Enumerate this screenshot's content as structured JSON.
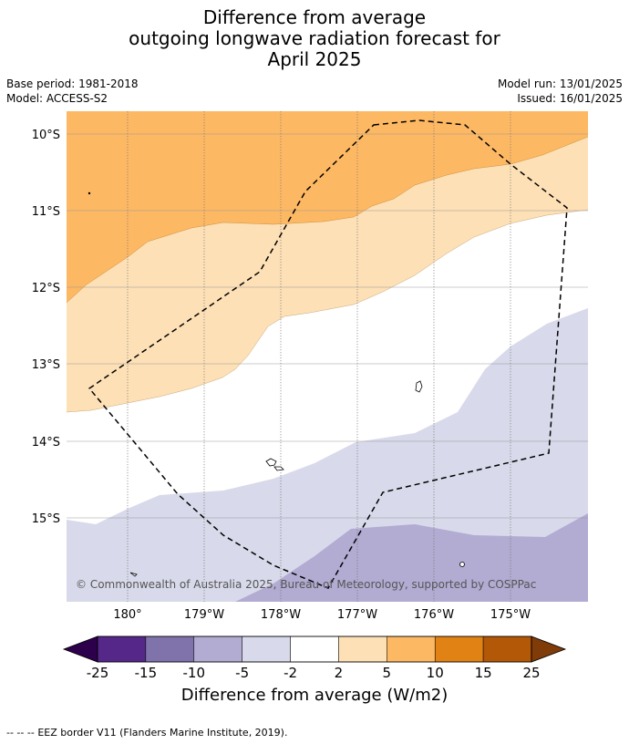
{
  "title_lines": [
    "Difference from average",
    "outgoing longwave radiation forecast for",
    "April 2025"
  ],
  "meta": {
    "base_period": "Base period: 1981-2018",
    "model": "Model: ACCESS-S2",
    "model_run": "Model run: 13/01/2025",
    "issued": "Issued: 16/01/2025"
  },
  "map": {
    "lon_labels": [
      "180°",
      "179°W",
      "178°W",
      "177°W",
      "176°W",
      "175°W"
    ],
    "lat_labels": [
      "10°S",
      "11°S",
      "12°S",
      "13°S",
      "14°S",
      "15°S"
    ],
    "copyright": "© Commonwealth of Australia 2025, Bureau of Meteorology, supported by COSPPac",
    "colors": {
      "pos_2_5": "#fde0b6",
      "pos_5_10": "#fdb863",
      "neg_2_5": "#d8d9ea",
      "neg_5_10": "#b2abd2",
      "eez_line": "#000000"
    }
  },
  "colorbar": {
    "ticks": [
      "-25",
      "-15",
      "-10",
      "-5",
      "-2",
      "2",
      "5",
      "10",
      "15",
      "25"
    ],
    "colors": [
      "#542788",
      "#8073ac",
      "#b2abd2",
      "#d8daeb",
      "#ffffff",
      "#fee0b6",
      "#fdb863",
      "#e08214",
      "#b35806"
    ],
    "under_color": "#2d004b",
    "over_color": "#7f3b08",
    "label": "Difference from average (W/m2)"
  },
  "legend": {
    "eez_symbol": "--  --  --",
    "eez_label": "EEZ border V11 (Flanders Marine Institute, 2019)."
  }
}
